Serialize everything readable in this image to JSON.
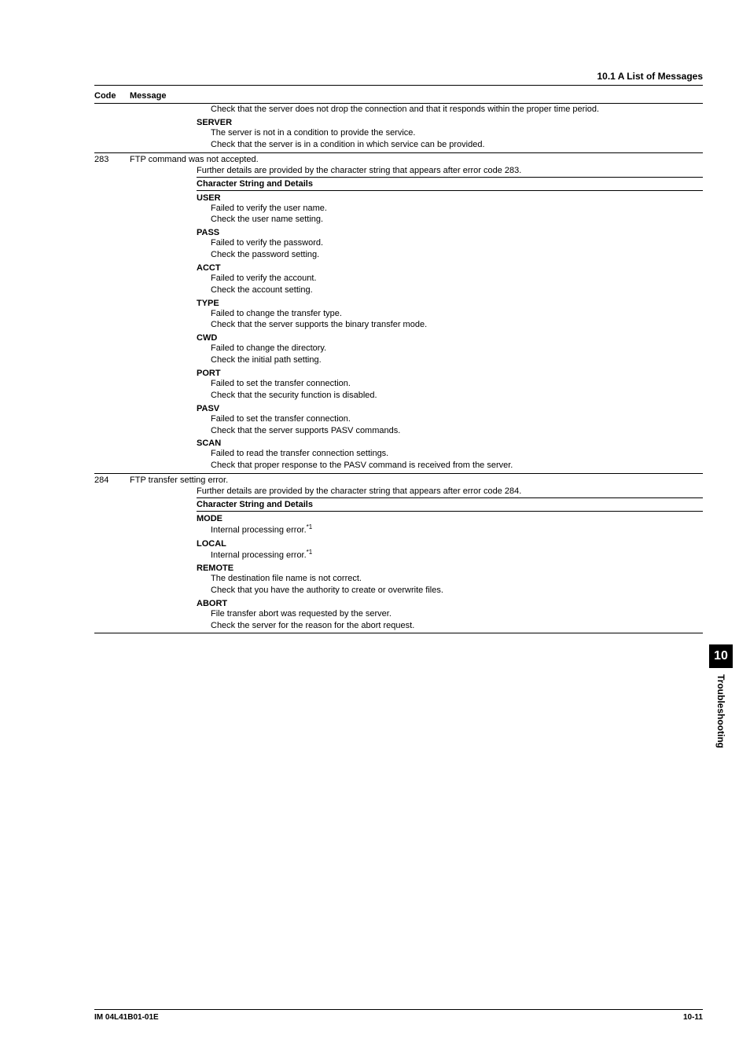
{
  "section_title": "10.1  A List of Messages",
  "table_header": {
    "code": "Code",
    "message": "Message"
  },
  "continuation": {
    "lines": [
      "Check that the server does not drop the connection and that it responds within the proper time period."
    ],
    "server": {
      "label": "SERVER",
      "lines": [
        "The server is not in a condition to provide the service.",
        "Check that the server is in a condition in which service can be provided."
      ]
    }
  },
  "rows": [
    {
      "code": "283",
      "summary": "FTP command was not accepted.",
      "further": "Further details are provided by the character string that appears after error code 283.",
      "char_header": "Character String and Details",
      "items": [
        {
          "term": "USER",
          "lines": [
            "Failed to verify the user name.",
            "Check the user name setting."
          ]
        },
        {
          "term": "PASS",
          "lines": [
            "Failed to verify the password.",
            "Check the password setting."
          ]
        },
        {
          "term": "ACCT",
          "lines": [
            "Failed to verify the account.",
            "Check the account setting."
          ]
        },
        {
          "term": "TYPE",
          "lines": [
            "Failed to change the transfer type.",
            "Check that the server supports the binary transfer mode."
          ]
        },
        {
          "term": "CWD",
          "lines": [
            "Failed to change the directory.",
            "Check the initial path setting."
          ]
        },
        {
          "term": "PORT",
          "lines": [
            "Failed to set the transfer connection.",
            "Check that the security function is disabled."
          ]
        },
        {
          "term": "PASV",
          "lines": [
            "Failed to set the transfer connection.",
            "Check that the server supports PASV commands."
          ]
        },
        {
          "term": "SCAN",
          "lines": [
            "Failed to read the transfer connection settings.",
            "Check that proper response to the PASV command is received from the server."
          ]
        }
      ]
    },
    {
      "code": "284",
      "summary": "FTP transfer setting error.",
      "further": "Further details are provided by the character string that appears after error code 284.",
      "char_header": "Character String and Details",
      "items": [
        {
          "term": "MODE",
          "lines": [
            "Internal processing error."
          ],
          "sup": "*1"
        },
        {
          "term": "LOCAL",
          "lines": [
            "Internal processing error."
          ],
          "sup": "*1"
        },
        {
          "term": "REMOTE",
          "lines": [
            "The destination file name is not correct.",
            "Check that you have the authority to create or overwrite files."
          ]
        },
        {
          "term": "ABORT",
          "lines": [
            "File transfer abort was requested by the server.",
            "Check the server for the reason for the abort request."
          ]
        }
      ]
    }
  ],
  "side_tab": {
    "number": "10",
    "label": "Troubleshooting"
  },
  "footer": {
    "left": "IM 04L41B01-01E",
    "right": "10-11"
  }
}
